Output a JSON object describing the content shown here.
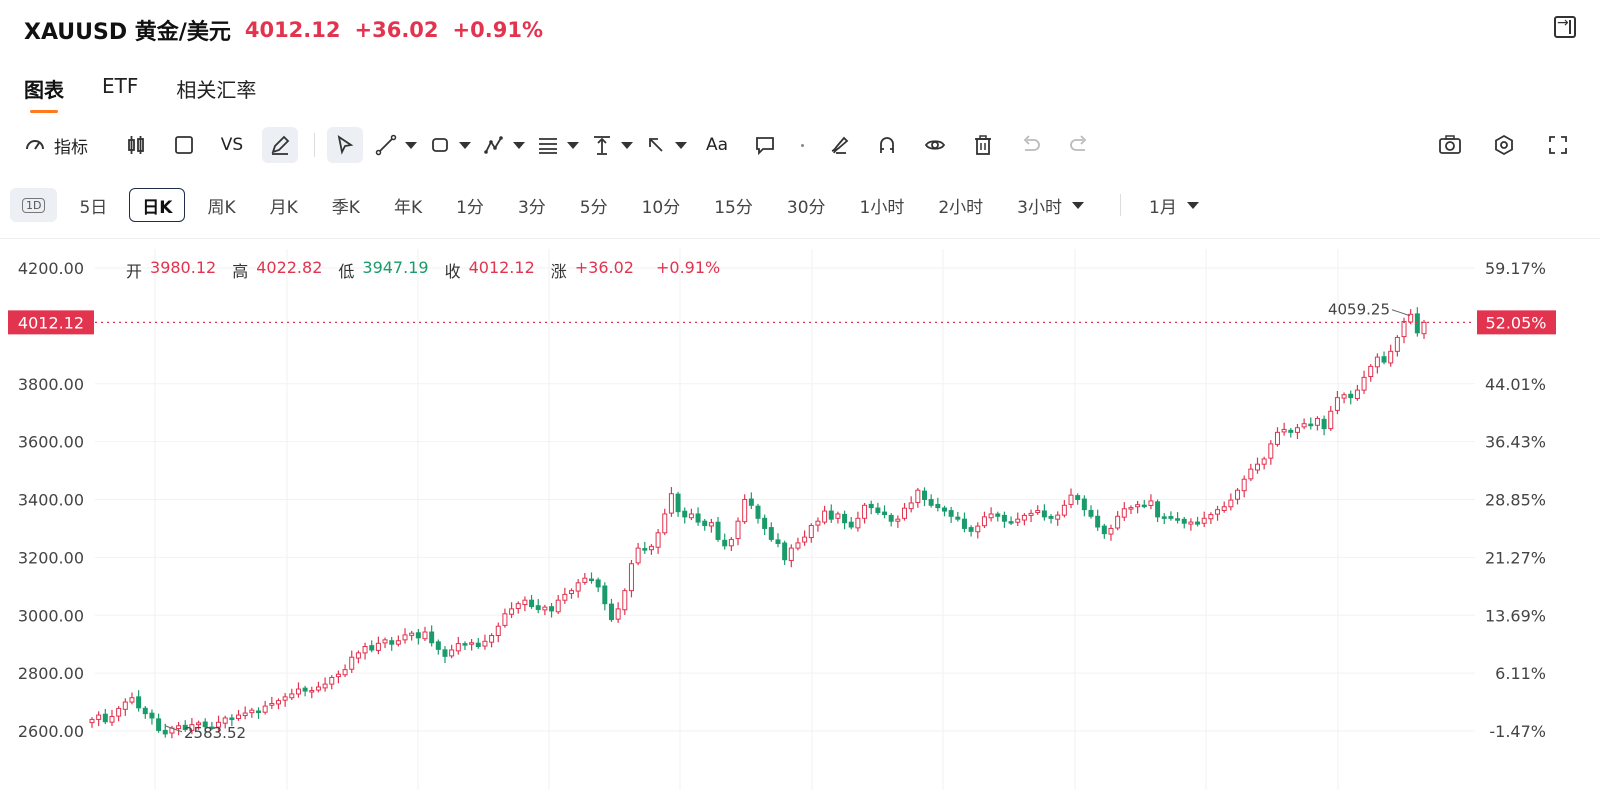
{
  "header": {
    "title": "XAUUSD 黄金/美元",
    "last": "4012.12",
    "change": "+36.02",
    "change_pct": "+0.91%"
  },
  "tabs": [
    "图表",
    "ETF",
    "相关汇率"
  ],
  "toolbar": {
    "indicator_label": "指标",
    "vs_label": "VS",
    "font_label": "Aa"
  },
  "periods": [
    "5日",
    "日K",
    "周K",
    "月K",
    "季K",
    "年K",
    "1分",
    "3分",
    "5分",
    "10分",
    "15分",
    "30分",
    "1小时",
    "2小时",
    "3小时"
  ],
  "periods_icon": "1D",
  "range_select": "1月",
  "ohlc": {
    "open_label": "开",
    "open": "3980.12",
    "high_label": "高",
    "high": "4022.82",
    "low_label": "低",
    "low": "3947.19",
    "close_label": "收",
    "close": "4012.12",
    "chg_label": "涨",
    "chg": "+36.02",
    "chg_pct": "+0.91%"
  },
  "colors": {
    "up": "#e2334f",
    "down": "#1a9b6b",
    "accent": "#ff7a1a"
  },
  "chart_data": {
    "type": "candlestick",
    "y_left_ticks": [
      "4200.00",
      "3800.00",
      "3600.00",
      "3400.00",
      "3200.00",
      "3000.00",
      "2800.00",
      "2600.00"
    ],
    "y_right_ticks": [
      "59.17%",
      "44.01%",
      "36.43%",
      "28.85%",
      "21.27%",
      "13.69%",
      "6.11%",
      "-1.47%"
    ],
    "ylim": [
      2520,
      4240
    ],
    "last_price": 4012.12,
    "last_price_label": "4012.12",
    "last_pct_label": "52.05%",
    "min_annotation": {
      "value": 2583.52,
      "label": "2583.52"
    },
    "max_annotation": {
      "value": 4059.25,
      "label": "4059.25"
    },
    "closes": [
      2640,
      2655,
      2632,
      2650,
      2678,
      2700,
      2715,
      2680,
      2660,
      2645,
      2602,
      2590,
      2610,
      2618,
      2605,
      2622,
      2628,
      2615,
      2612,
      2630,
      2645,
      2640,
      2655,
      2662,
      2672,
      2665,
      2686,
      2695,
      2705,
      2718,
      2728,
      2745,
      2738,
      2740,
      2752,
      2762,
      2785,
      2796,
      2812,
      2855,
      2870,
      2892,
      2880,
      2903,
      2915,
      2900,
      2912,
      2932,
      2938,
      2922,
      2942,
      2905,
      2882,
      2858,
      2880,
      2902,
      2898,
      2905,
      2892,
      2910,
      2930,
      2962,
      3005,
      3022,
      3040,
      3052,
      3030,
      3020,
      3028,
      3015,
      3052,
      3072,
      3085,
      3112,
      3128,
      3122,
      3098,
      3040,
      2985,
      3022,
      3085,
      3178,
      3232,
      3225,
      3238,
      3285,
      3350,
      3420,
      3358,
      3340,
      3350,
      3322,
      3310,
      3320,
      3262,
      3240,
      3262,
      3325,
      3400,
      3380,
      3335,
      3300,
      3262,
      3248,
      3192,
      3232,
      3250,
      3270,
      3310,
      3325,
      3360,
      3332,
      3350,
      3320,
      3305,
      3335,
      3380,
      3372,
      3355,
      3348,
      3325,
      3332,
      3370,
      3388,
      3432,
      3400,
      3380,
      3372,
      3360,
      3342,
      3332,
      3300,
      3290,
      3308,
      3340,
      3350,
      3342,
      3325,
      3320,
      3332,
      3345,
      3352,
      3362,
      3340,
      3335,
      3346,
      3380,
      3415,
      3400,
      3365,
      3342,
      3305,
      3282,
      3300,
      3342,
      3368,
      3372,
      3382,
      3378,
      3395,
      3340,
      3338,
      3335,
      3330,
      3318,
      3322,
      3315,
      3335,
      3348,
      3365,
      3375,
      3398,
      3432,
      3470,
      3505,
      3522,
      3540,
      3592,
      3632,
      3642,
      3632,
      3648,
      3662,
      3655,
      3680,
      3645,
      3705,
      3752,
      3762,
      3752,
      3778,
      3822,
      3860,
      3892,
      3875,
      3912,
      3960,
      4015,
      4040,
      3976,
      4012.12
    ]
  }
}
